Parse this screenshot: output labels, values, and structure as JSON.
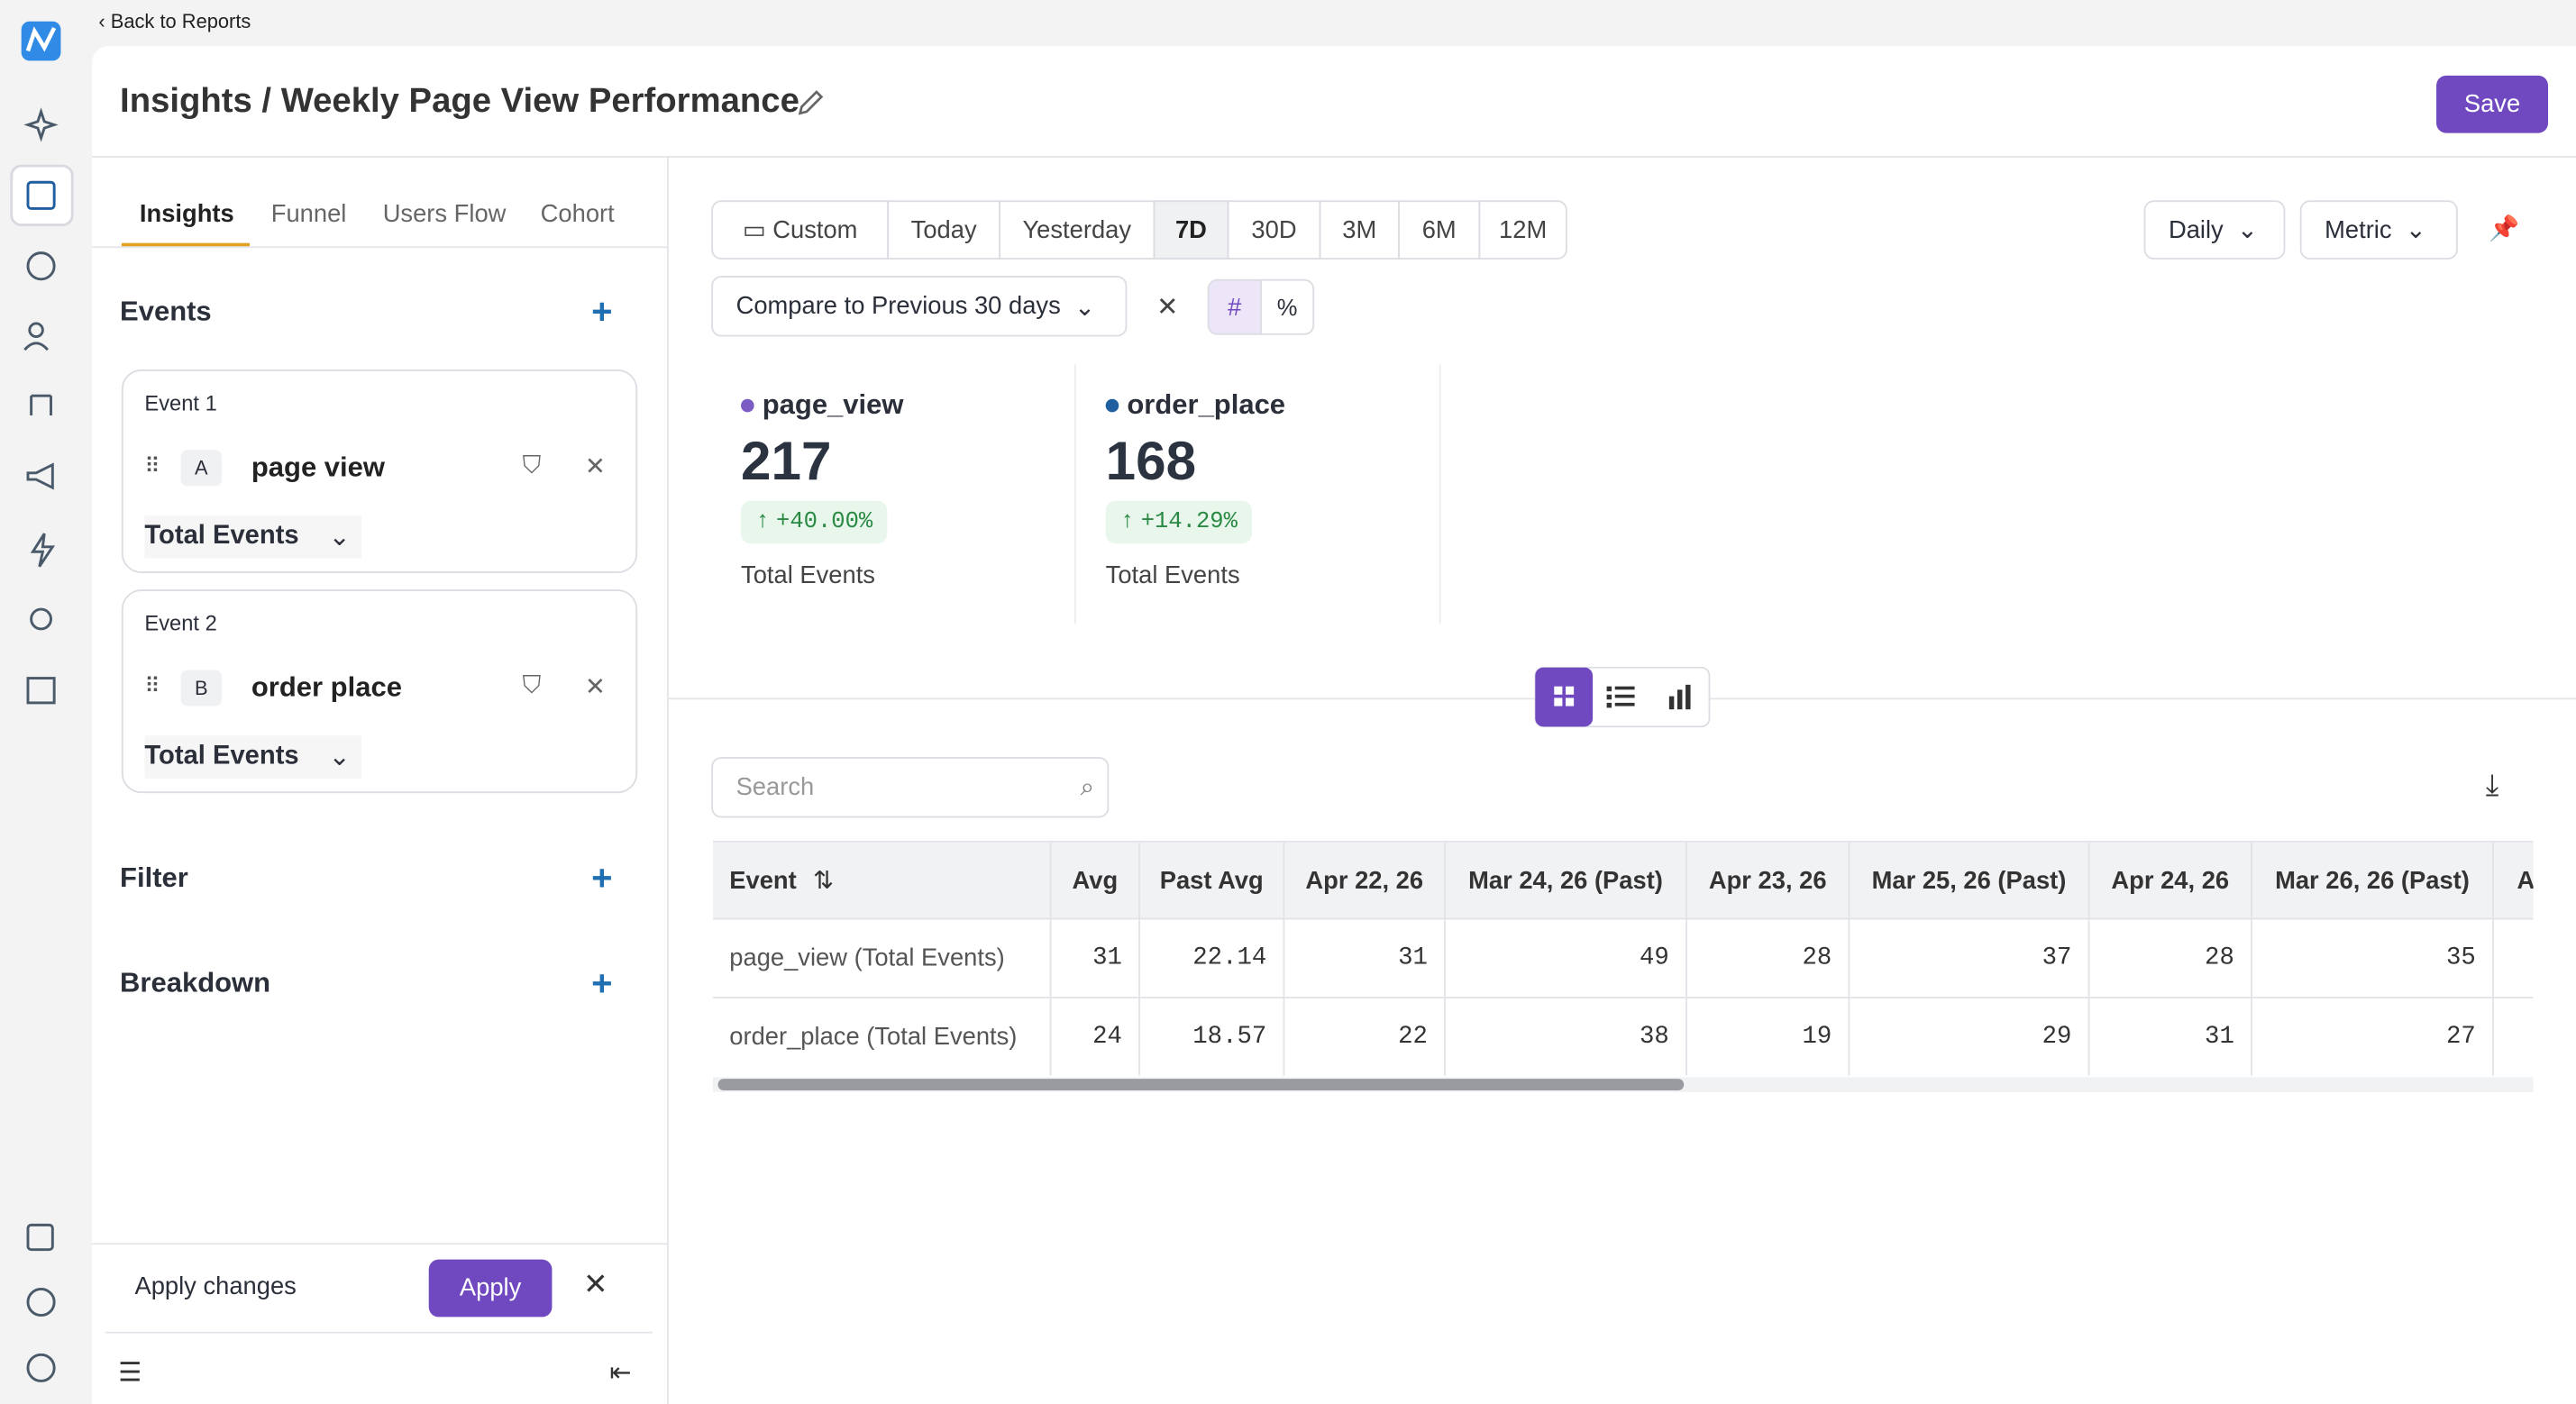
{
  "nav": {
    "back": "Back to Reports"
  },
  "header": {
    "title": "Insights / Weekly Page View Performance",
    "save": "Save"
  },
  "tabs": [
    "Insights",
    "Funnel",
    "Users Flow",
    "Cohort"
  ],
  "events_section": {
    "title": "Events",
    "events": [
      {
        "label": "Event 1",
        "letter": "A",
        "name": "page view",
        "measure": "Total Events"
      },
      {
        "label": "Event 2",
        "letter": "B",
        "name": "order place",
        "measure": "Total Events"
      }
    ]
  },
  "filter": "Filter",
  "breakdown": "Breakdown",
  "footer": {
    "text": "Apply changes",
    "button": "Apply"
  },
  "date_ranges": [
    "Custom",
    "Today",
    "Yesterday",
    "7D",
    "30D",
    "3M",
    "6M",
    "12M"
  ],
  "interval": "Daily",
  "view": "Metric",
  "compare": {
    "label": "Compare to Previous 30 days",
    "toggles": [
      "#",
      "%"
    ]
  },
  "metrics": [
    {
      "name": "page_view",
      "color": "#7b5cc4",
      "value": 217,
      "change": "+40.00%",
      "label": "Total Events"
    },
    {
      "name": "order_place",
      "color": "#1f5fa0",
      "value": 168,
      "change": "+14.29%",
      "label": "Total Events"
    }
  ],
  "search": "Search",
  "table": {
    "headers": [
      "Event",
      "Avg",
      "Past Avg",
      "Apr 22, 26",
      "Mar 24, 26 (Past)",
      "Apr 23, 26",
      "Mar 25, 26 (Past)",
      "Apr 24, 26",
      "Mar 26, 26 (Past)",
      "A"
    ],
    "rows": [
      [
        "page_view (Total Events)",
        31,
        22.14,
        31,
        49,
        28,
        37,
        28,
        35
      ],
      [
        "order_place (Total Events)",
        24,
        18.57,
        22,
        38,
        19,
        29,
        31,
        27
      ]
    ]
  }
}
